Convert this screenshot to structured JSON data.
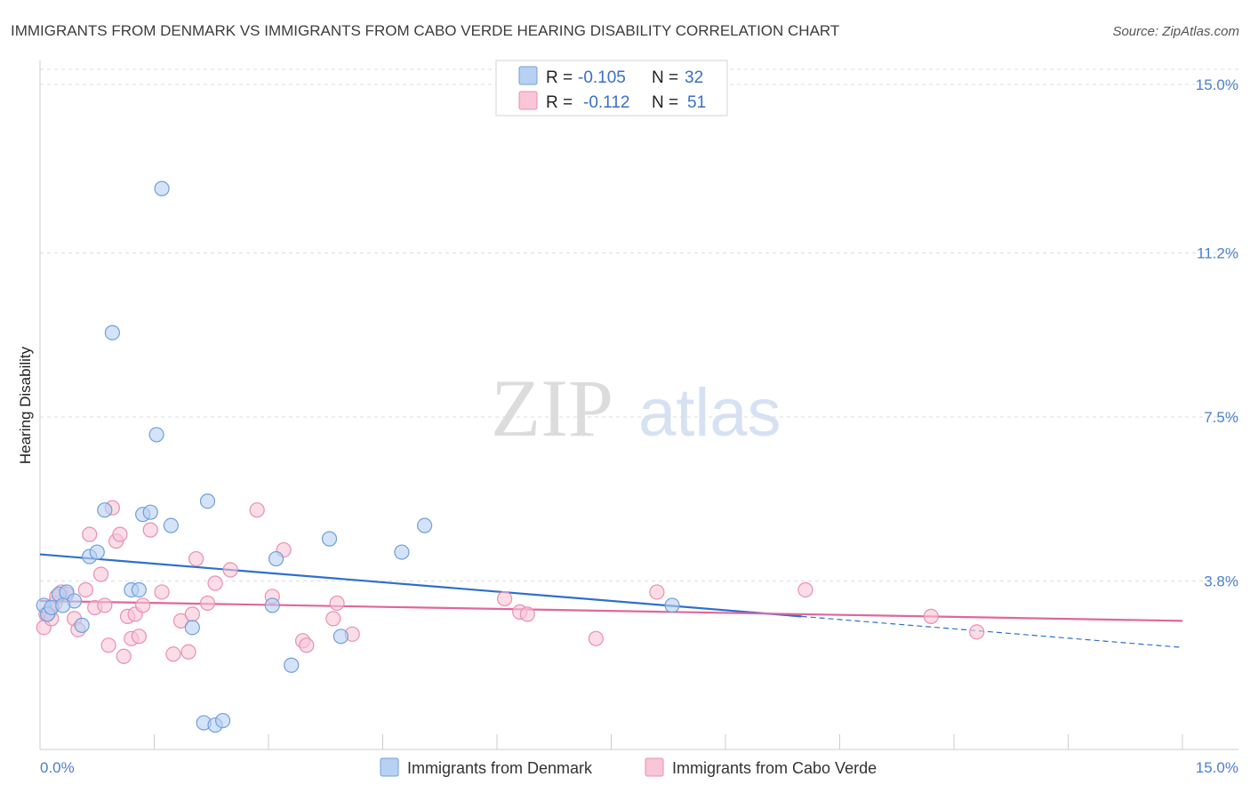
{
  "header": {
    "title": "IMMIGRANTS FROM DENMARK VS IMMIGRANTS FROM CABO VERDE HEARING DISABILITY CORRELATION CHART",
    "source": "Source: ZipAtlas.com"
  },
  "watermark": {
    "zip": "ZIP",
    "atlas": "atlas"
  },
  "chart_data": {
    "type": "scatter",
    "xlabel": "",
    "ylabel": "Hearing Disability",
    "xlim": [
      0,
      15
    ],
    "ylim": [
      0,
      15.5
    ],
    "x_tick_labels": [
      {
        "value": 0,
        "label": "0.0%"
      },
      {
        "value": 15,
        "label": "15.0%"
      }
    ],
    "y_tick_labels": [
      {
        "value": 3.8,
        "label": "3.8%"
      },
      {
        "value": 7.5,
        "label": "7.5%"
      },
      {
        "value": 11.2,
        "label": "11.2%"
      },
      {
        "value": 15.0,
        "label": "15.0%"
      }
    ],
    "grid": "horizontal-dashed",
    "legend_position": "top-center",
    "colors": {
      "denmark_fill": "#b8d1f3",
      "denmark_stroke": "#6f9fdc",
      "denmark_line": "#2f6fcf",
      "caboverde_fill": "#f8c6d6",
      "caboverde_stroke": "#e98fb0",
      "caboverde_line": "#e0679a"
    },
    "series": [
      {
        "name": "Immigrants from Denmark",
        "r_label": "R =",
        "r_value": "-0.105",
        "n_label": "N =",
        "n_value": "32",
        "trend": {
          "x0": 0,
          "y0": 4.4,
          "x1": 10.0,
          "y1": 3.0,
          "dash_to_x": 15,
          "dash_to_y": 2.3
        },
        "points": [
          [
            0.05,
            3.25
          ],
          [
            0.1,
            3.05
          ],
          [
            0.15,
            3.2
          ],
          [
            0.25,
            3.5
          ],
          [
            0.35,
            3.55
          ],
          [
            0.45,
            3.35
          ],
          [
            0.55,
            2.8
          ],
          [
            0.65,
            4.35
          ],
          [
            0.75,
            4.45
          ],
          [
            0.85,
            5.4
          ],
          [
            0.95,
            9.4
          ],
          [
            1.2,
            3.6
          ],
          [
            1.3,
            3.6
          ],
          [
            1.35,
            5.3
          ],
          [
            1.45,
            5.35
          ],
          [
            1.53,
            7.1
          ],
          [
            1.6,
            12.65
          ],
          [
            1.72,
            5.05
          ],
          [
            2.0,
            2.75
          ],
          [
            2.15,
            0.6
          ],
          [
            2.2,
            5.6
          ],
          [
            2.3,
            0.55
          ],
          [
            2.4,
            0.65
          ],
          [
            3.05,
            3.25
          ],
          [
            3.1,
            4.3
          ],
          [
            3.3,
            1.9
          ],
          [
            3.8,
            4.75
          ],
          [
            3.95,
            2.55
          ],
          [
            4.75,
            4.45
          ],
          [
            5.05,
            5.05
          ],
          [
            8.3,
            3.25
          ],
          [
            0.3,
            3.25
          ]
        ]
      },
      {
        "name": "Immigrants from Cabo Verde",
        "r_label": "R =",
        "r_value": "-0.112",
        "n_label": "N =",
        "n_value": "51",
        "trend": {
          "x0": 0,
          "y0": 3.35,
          "x1": 15,
          "y1": 2.9
        },
        "points": [
          [
            0.05,
            2.75
          ],
          [
            0.08,
            3.05
          ],
          [
            0.12,
            3.1
          ],
          [
            0.2,
            3.3
          ],
          [
            0.28,
            3.55
          ],
          [
            0.35,
            3.5
          ],
          [
            0.45,
            2.95
          ],
          [
            0.5,
            2.7
          ],
          [
            0.6,
            3.6
          ],
          [
            0.65,
            4.85
          ],
          [
            0.72,
            3.2
          ],
          [
            0.8,
            3.95
          ],
          [
            0.85,
            3.25
          ],
          [
            0.9,
            2.35
          ],
          [
            0.95,
            5.45
          ],
          [
            1.0,
            4.7
          ],
          [
            1.05,
            4.85
          ],
          [
            1.1,
            2.1
          ],
          [
            1.15,
            3.0
          ],
          [
            1.2,
            2.5
          ],
          [
            1.25,
            3.05
          ],
          [
            1.3,
            2.55
          ],
          [
            1.35,
            3.25
          ],
          [
            1.45,
            4.95
          ],
          [
            1.6,
            3.55
          ],
          [
            1.75,
            2.15
          ],
          [
            1.85,
            2.9
          ],
          [
            1.95,
            2.2
          ],
          [
            2.0,
            3.05
          ],
          [
            2.05,
            4.3
          ],
          [
            2.2,
            3.3
          ],
          [
            2.3,
            3.75
          ],
          [
            2.5,
            4.05
          ],
          [
            2.85,
            5.4
          ],
          [
            3.05,
            3.45
          ],
          [
            3.2,
            4.5
          ],
          [
            3.45,
            2.45
          ],
          [
            3.5,
            2.35
          ],
          [
            3.85,
            2.95
          ],
          [
            3.9,
            3.3
          ],
          [
            4.1,
            2.6
          ],
          [
            6.1,
            3.4
          ],
          [
            6.3,
            3.1
          ],
          [
            6.4,
            3.05
          ],
          [
            7.3,
            2.5
          ],
          [
            8.1,
            3.55
          ],
          [
            10.05,
            3.6
          ],
          [
            11.7,
            3.0
          ],
          [
            12.3,
            2.65
          ],
          [
            0.15,
            2.95
          ],
          [
            0.22,
            3.45
          ]
        ]
      }
    ]
  }
}
